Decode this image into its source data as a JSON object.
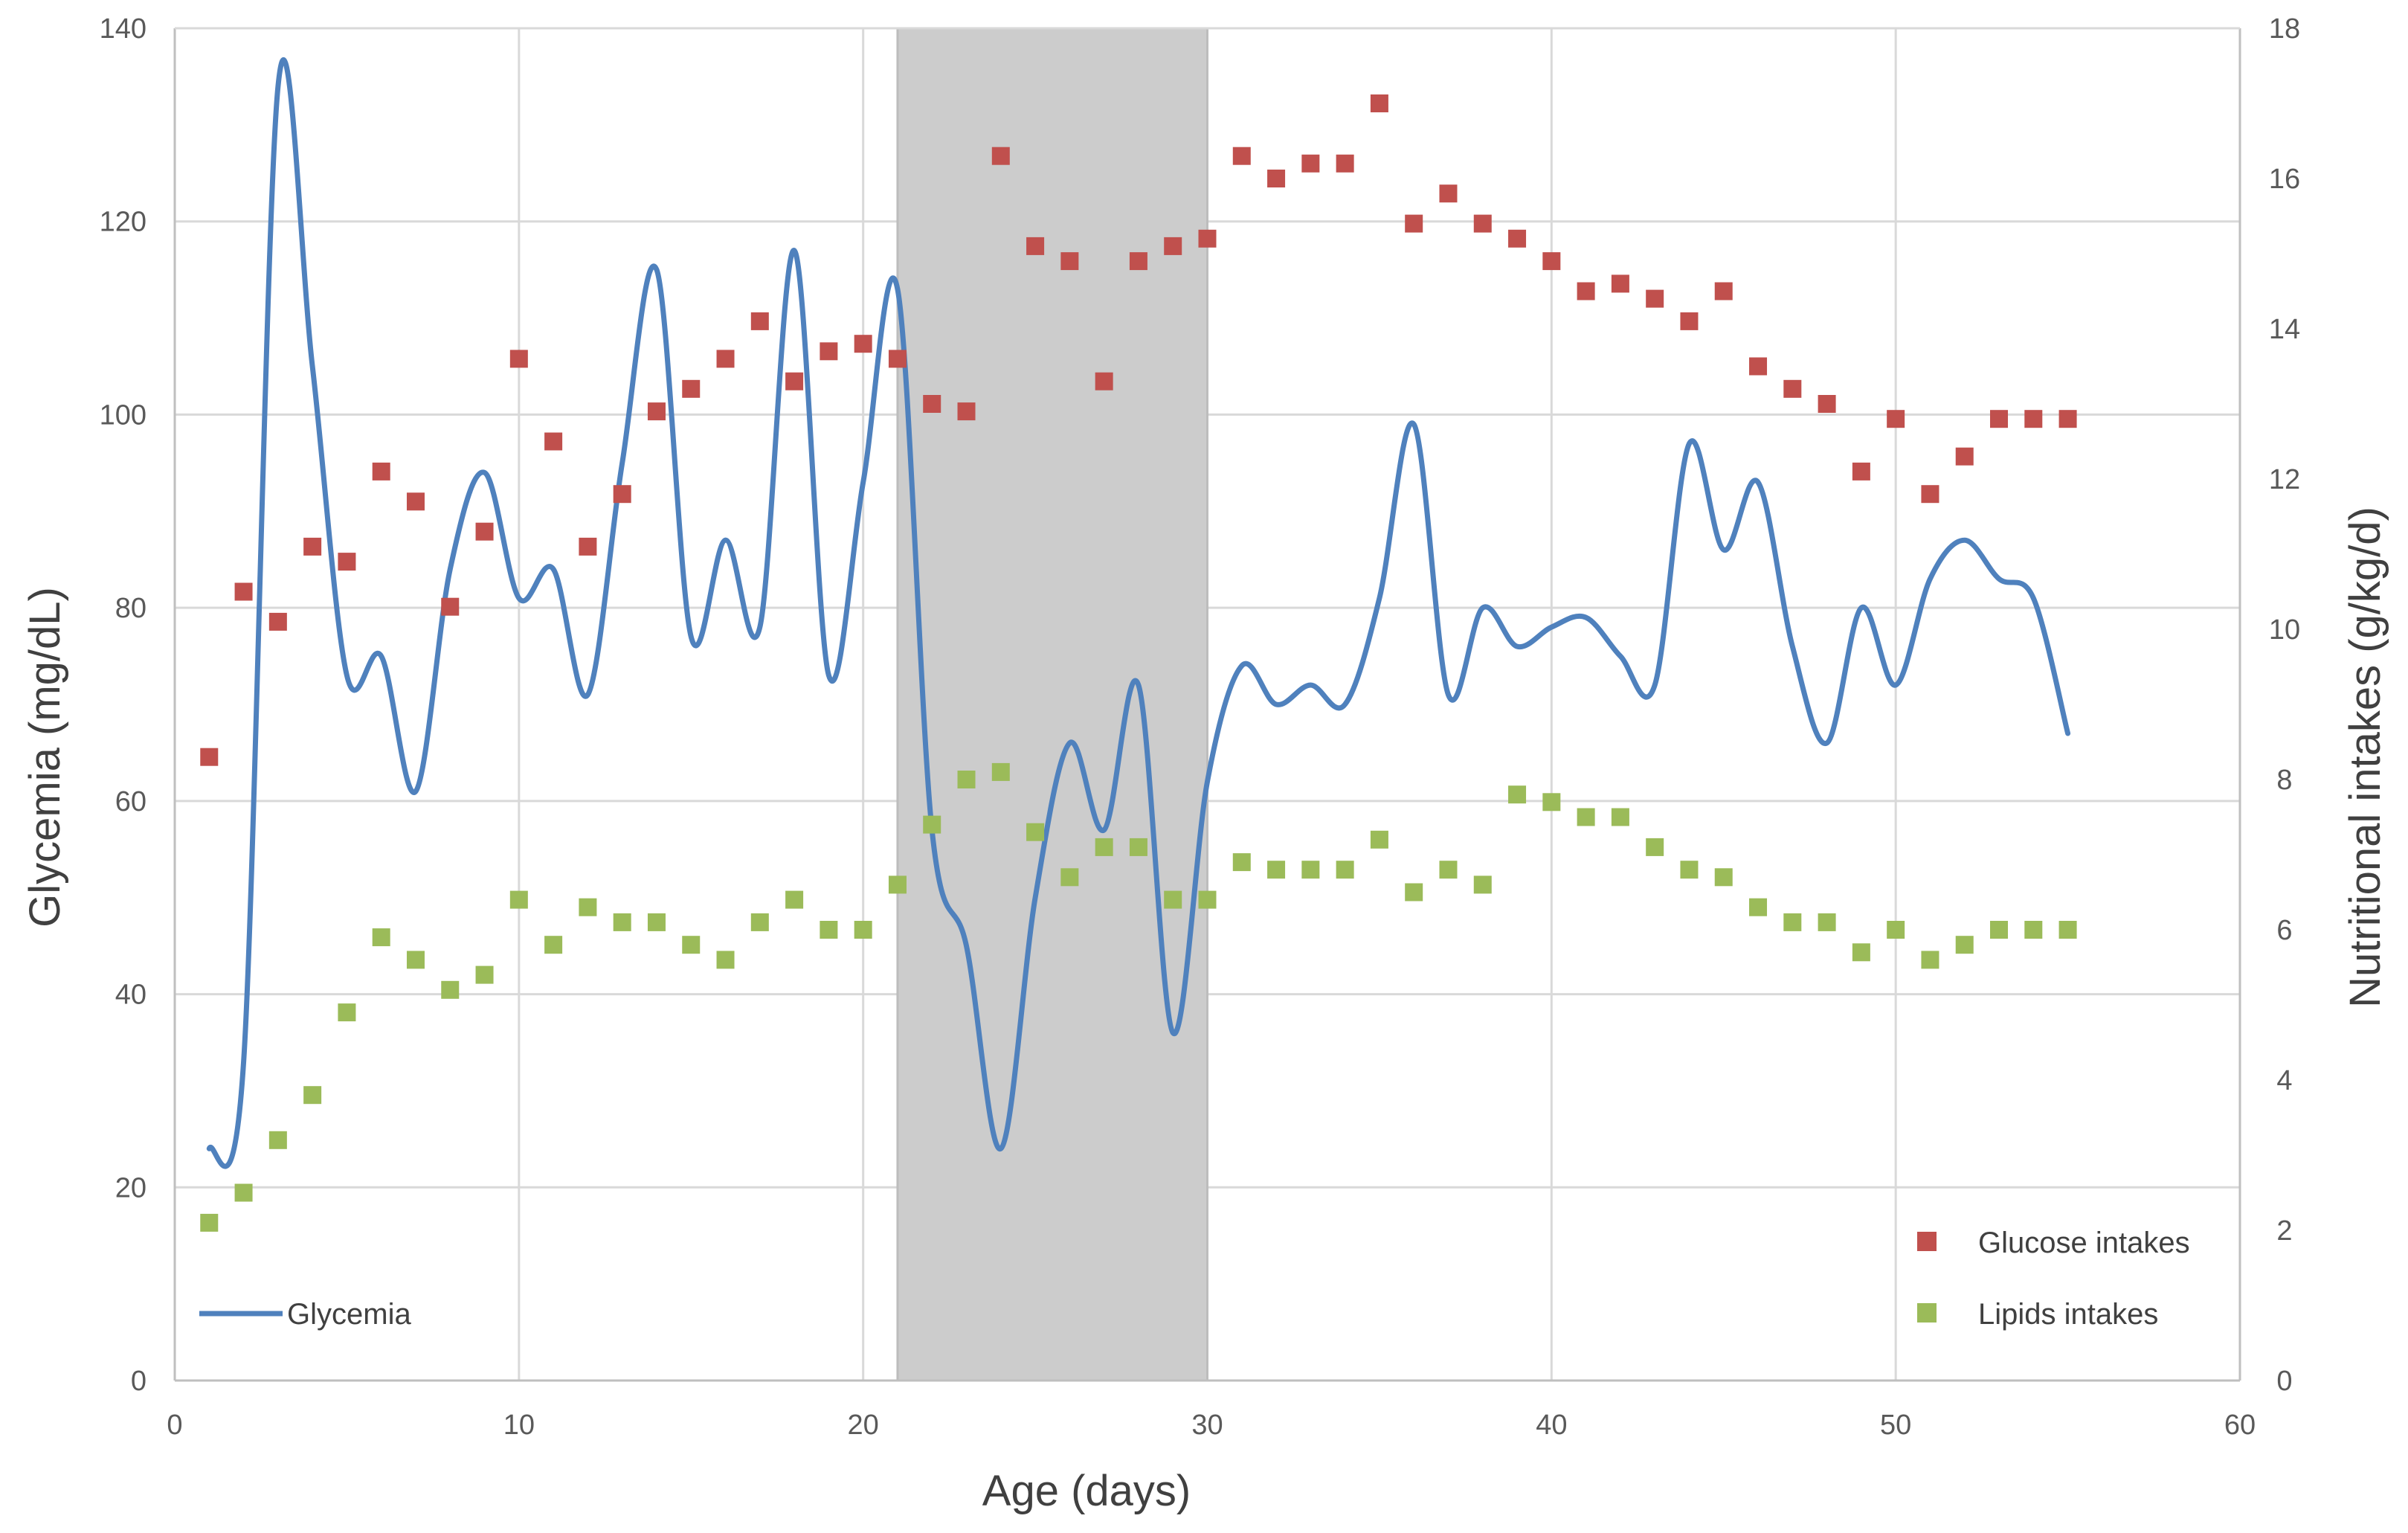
{
  "chart_data": {
    "type": "line+scatter",
    "title": "",
    "xlabel": "Age (days)",
    "ylabel": "Glycemia (mg/dL)",
    "y2label": "Nutritional intakes (g/kg/d)",
    "xlim": [
      0,
      60
    ],
    "ylim": [
      0,
      140
    ],
    "y2lim": [
      0,
      18
    ],
    "x_ticks": [
      0,
      10,
      20,
      30,
      40,
      50,
      60
    ],
    "y_ticks": [
      0,
      20,
      40,
      60,
      80,
      100,
      120,
      140
    ],
    "y2_ticks": [
      0,
      2,
      4,
      6,
      8,
      10,
      12,
      14,
      16,
      18
    ],
    "grid": true,
    "shaded_region": {
      "x_start": 21,
      "x_end": 30
    },
    "series": [
      {
        "name": "Glycemia",
        "type": "line",
        "axis": "left",
        "color": "#4f81bd",
        "x": [
          1,
          2,
          3,
          4,
          5,
          6,
          7,
          8,
          9,
          10,
          11,
          12,
          13,
          14,
          15,
          16,
          17,
          18,
          19,
          20,
          21,
          22,
          23,
          24,
          25,
          26,
          27,
          28,
          29,
          30,
          31,
          32,
          33,
          34,
          35,
          36,
          37,
          38,
          39,
          40,
          41,
          42,
          43,
          44,
          45,
          46,
          47,
          48,
          49,
          50,
          51,
          52,
          53,
          54,
          55
        ],
        "values": [
          24,
          33,
          134,
          105,
          73,
          75,
          61,
          84,
          94,
          81,
          84,
          71,
          95,
          115,
          77,
          87,
          78,
          117,
          73,
          93,
          113,
          57,
          45,
          24,
          50,
          66,
          57,
          72,
          36,
          62,
          74,
          70,
          72,
          70,
          81,
          99,
          71,
          80,
          76,
          78,
          79,
          75,
          72,
          97,
          86,
          93,
          76,
          66,
          80,
          72,
          83,
          87,
          83,
          81,
          67
        ]
      },
      {
        "name": "Glucose intakes",
        "type": "scatter",
        "axis": "right",
        "color": "#c0504d",
        "x": [
          1,
          2,
          3,
          4,
          5,
          6,
          7,
          8,
          9,
          10,
          11,
          12,
          13,
          14,
          15,
          16,
          17,
          18,
          19,
          20,
          21,
          22,
          23,
          24,
          25,
          26,
          27,
          28,
          29,
          30,
          31,
          32,
          33,
          34,
          35,
          36,
          37,
          38,
          39,
          40,
          41,
          42,
          43,
          44,
          45,
          46,
          47,
          48,
          49,
          50,
          51,
          52,
          53,
          54,
          55
        ],
        "values": [
          8.3,
          10.5,
          10.1,
          11.1,
          10.9,
          12.1,
          11.7,
          10.3,
          11.3,
          13.6,
          12.5,
          11.1,
          11.8,
          12.9,
          13.2,
          13.6,
          14.1,
          13.3,
          13.7,
          13.8,
          13.6,
          13.0,
          12.9,
          16.3,
          15.1,
          14.9,
          13.3,
          14.9,
          15.1,
          15.2,
          16.3,
          16.0,
          16.2,
          16.2,
          17.0,
          15.4,
          15.8,
          15.4,
          15.2,
          14.9,
          14.5,
          14.6,
          14.4,
          14.1,
          14.5,
          13.5,
          13.2,
          13.0,
          12.1,
          12.8,
          11.8,
          12.3,
          12.8,
          12.8,
          12.8
        ]
      },
      {
        "name": "Lipids intakes",
        "type": "scatter",
        "axis": "right",
        "color": "#9bbb59",
        "x": [
          1,
          2,
          3,
          4,
          5,
          6,
          7,
          8,
          9,
          10,
          11,
          12,
          13,
          14,
          15,
          16,
          17,
          18,
          19,
          20,
          21,
          22,
          23,
          24,
          25,
          26,
          27,
          28,
          29,
          30,
          31,
          32,
          33,
          34,
          35,
          36,
          37,
          38,
          39,
          40,
          41,
          42,
          43,
          44,
          45,
          46,
          47,
          48,
          49,
          50,
          51,
          52,
          53,
          54,
          55
        ],
        "values": [
          2.1,
          2.5,
          3.2,
          3.8,
          4.9,
          5.9,
          5.6,
          5.2,
          5.4,
          6.4,
          5.8,
          6.3,
          6.1,
          6.1,
          5.8,
          5.6,
          6.1,
          6.4,
          6.0,
          6.0,
          6.6,
          7.4,
          8.0,
          8.1,
          7.3,
          6.7,
          7.1,
          7.1,
          6.4,
          6.4,
          6.9,
          6.8,
          6.8,
          6.8,
          7.2,
          6.5,
          6.8,
          6.6,
          7.8,
          7.7,
          7.5,
          7.5,
          7.1,
          6.8,
          6.7,
          6.3,
          6.1,
          6.1,
          5.7,
          6.0,
          5.6,
          5.8,
          6.0,
          6.0,
          6.0
        ]
      }
    ],
    "legend": [
      {
        "label": "Glycemia",
        "position": "bottom-left"
      },
      {
        "label": "Glucose intakes",
        "position": "bottom-right"
      },
      {
        "label": "Lipids intakes",
        "position": "bottom-right"
      }
    ]
  },
  "colors": {
    "grid": "#d9d9d9",
    "axis": "#bfbfbf",
    "shade": "#cccccc",
    "shade_edge": "#bdbdbd"
  }
}
